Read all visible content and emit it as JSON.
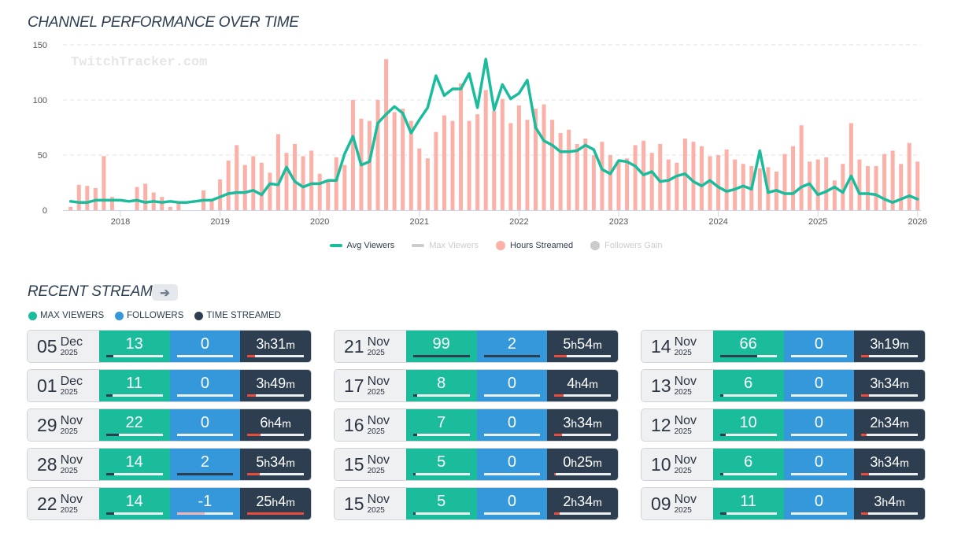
{
  "chart_title": "CHANNEL PERFORMANCE OVER TIME",
  "watermark": "TwitchTracker.com",
  "chart_data": {
    "type": "bar",
    "title": "CHANNEL PERFORMANCE OVER TIME",
    "xlabel": "",
    "ylabel": "",
    "ylim": [
      0,
      150
    ],
    "yticks": [
      "0",
      "50",
      "100",
      "150"
    ],
    "xticks": [
      "2018",
      "2019",
      "2020",
      "2021",
      "2022",
      "2023",
      "2024",
      "2025",
      "2026"
    ],
    "start_month": "2017-07",
    "grid": true,
    "legend_position": "bottom",
    "series": [
      {
        "name": "Avg Viewers",
        "type": "line",
        "color": "#1abc9c",
        "visible": true,
        "values": [
          8,
          7,
          7,
          9,
          9,
          9,
          9,
          8,
          9,
          7,
          8,
          7,
          8,
          7,
          7,
          8,
          9,
          9,
          12,
          15,
          16,
          16,
          18,
          14,
          24,
          23,
          39,
          26,
          21,
          24,
          24,
          27,
          27,
          51,
          67,
          41,
          44,
          79,
          87,
          94,
          88,
          70,
          82,
          93,
          122,
          104,
          110,
          110,
          124,
          93,
          137,
          91,
          114,
          101,
          106,
          118,
          75,
          63,
          59,
          53,
          53,
          54,
          59,
          55,
          37,
          33,
          45,
          44,
          40,
          32,
          35,
          26,
          27,
          31,
          33,
          26,
          22,
          27,
          21,
          17,
          19,
          22,
          19,
          54,
          16,
          18,
          15,
          15,
          21,
          24,
          14,
          17,
          21,
          16,
          31,
          15,
          15,
          14,
          10,
          7,
          10,
          13,
          10
        ]
      },
      {
        "name": "Max Viewers",
        "type": "line",
        "color": "#cccccc",
        "visible": false,
        "values": []
      },
      {
        "name": "Hours Streamed",
        "type": "bar",
        "color": "#fcb1a8",
        "visible": true,
        "values": [
          3,
          23,
          22,
          20,
          49,
          12,
          0,
          0,
          21,
          24,
          16,
          12,
          3,
          8,
          0,
          0,
          18,
          9,
          28,
          45,
          59,
          41,
          49,
          43,
          34,
          69,
          52,
          60,
          49,
          54,
          33,
          26,
          48,
          41,
          100,
          83,
          81,
          100,
          137,
          89,
          92,
          81,
          56,
          47,
          71,
          86,
          81,
          115,
          81,
          87,
          109,
          90,
          101,
          79,
          95,
          82,
          92,
          96,
          82,
          70,
          73,
          60,
          65,
          50,
          62,
          50,
          45,
          47,
          59,
          63,
          52,
          60,
          46,
          43,
          65,
          62,
          58,
          49,
          50,
          55,
          46,
          42,
          40,
          38,
          39,
          35,
          51,
          58,
          77,
          44,
          46,
          48,
          27,
          42,
          79,
          46,
          40,
          40,
          51,
          54,
          42,
          61,
          44
        ]
      },
      {
        "name": "Followers Gain",
        "type": "line",
        "color": "#cccccc",
        "visible": false,
        "values": []
      }
    ]
  },
  "legend": [
    {
      "label": "Avg Viewers",
      "kind": "line",
      "color": "#1abc9c",
      "active": true
    },
    {
      "label": "Max Viewers",
      "kind": "line",
      "color": "#cccccc",
      "active": false
    },
    {
      "label": "Hours Streamed",
      "kind": "dot",
      "color": "#fcb1a8",
      "active": true
    },
    {
      "label": "Followers Gain",
      "kind": "dot",
      "color": "#cccccc",
      "active": false
    }
  ],
  "streams_title": "RECENT STREAMS",
  "streams_arrow_icon": "arrow-right-icon",
  "streams_legend": [
    {
      "label": "MAX VIEWERS",
      "color": "#1abc9c"
    },
    {
      "label": "FOLLOWERS",
      "color": "#3498db"
    },
    {
      "label": "TIME STREAMED",
      "color": "#2c3e50"
    }
  ],
  "streams": [
    {
      "day": "05",
      "month": "Dec",
      "year": "2025",
      "viewers": "13",
      "viewers_pct": 13,
      "followers": "0",
      "followers_pct": 0,
      "time_h": "3",
      "time_m": "31",
      "time_pct": 14
    },
    {
      "day": "21",
      "month": "Nov",
      "year": "2025",
      "viewers": "99",
      "viewers_pct": 100,
      "followers": "2",
      "followers_pct": 100,
      "time_h": "5",
      "time_m": "54",
      "time_pct": 22
    },
    {
      "day": "14",
      "month": "Nov",
      "year": "2025",
      "viewers": "66",
      "viewers_pct": 66,
      "followers": "0",
      "followers_pct": 0,
      "time_h": "3",
      "time_m": "19",
      "time_pct": 13
    },
    {
      "day": "01",
      "month": "Dec",
      "year": "2025",
      "viewers": "11",
      "viewers_pct": 11,
      "followers": "0",
      "followers_pct": 0,
      "time_h": "3",
      "time_m": "49",
      "time_pct": 15
    },
    {
      "day": "17",
      "month": "Nov",
      "year": "2025",
      "viewers": "8",
      "viewers_pct": 7,
      "followers": "0",
      "followers_pct": 0,
      "time_h": "4",
      "time_m": "4",
      "time_pct": 16
    },
    {
      "day": "13",
      "month": "Nov",
      "year": "2025",
      "viewers": "6",
      "viewers_pct": 6,
      "followers": "0",
      "followers_pct": 0,
      "time_h": "3",
      "time_m": "34",
      "time_pct": 14
    },
    {
      "day": "29",
      "month": "Nov",
      "year": "2025",
      "viewers": "22",
      "viewers_pct": 22,
      "followers": "0",
      "followers_pct": 0,
      "time_h": "6",
      "time_m": "4",
      "time_pct": 24
    },
    {
      "day": "16",
      "month": "Nov",
      "year": "2025",
      "viewers": "7",
      "viewers_pct": 7,
      "followers": "0",
      "followers_pct": 0,
      "time_h": "3",
      "time_m": "34",
      "time_pct": 14
    },
    {
      "day": "12",
      "month": "Nov",
      "year": "2025",
      "viewers": "10",
      "viewers_pct": 10,
      "followers": "0",
      "followers_pct": 0,
      "time_h": "2",
      "time_m": "34",
      "time_pct": 10
    },
    {
      "day": "28",
      "month": "Nov",
      "year": "2025",
      "viewers": "14",
      "viewers_pct": 14,
      "followers": "2",
      "followers_pct": 100,
      "time_h": "5",
      "time_m": "34",
      "time_pct": 22
    },
    {
      "day": "15",
      "month": "Nov",
      "year": "2025",
      "viewers": "5",
      "viewers_pct": 5,
      "followers": "0",
      "followers_pct": 0,
      "time_h": "0",
      "time_m": "25",
      "time_pct": 2
    },
    {
      "day": "10",
      "month": "Nov",
      "year": "2025",
      "viewers": "6",
      "viewers_pct": 6,
      "followers": "0",
      "followers_pct": 0,
      "time_h": "3",
      "time_m": "34",
      "time_pct": 14
    },
    {
      "day": "22",
      "month": "Nov",
      "year": "2025",
      "viewers": "14",
      "viewers_pct": 14,
      "followers": "-1",
      "followers_pct": -50,
      "time_h": "25",
      "time_m": "4",
      "time_pct": 100
    },
    {
      "day": "15",
      "month": "Nov",
      "year": "2025",
      "viewers": "5",
      "viewers_pct": 5,
      "followers": "0",
      "followers_pct": 0,
      "time_h": "2",
      "time_m": "34",
      "time_pct": 10
    },
    {
      "day": "09",
      "month": "Nov",
      "year": "2025",
      "viewers": "11",
      "viewers_pct": 11,
      "followers": "0",
      "followers_pct": 0,
      "time_h": "3",
      "time_m": "4",
      "time_pct": 12
    }
  ],
  "time_units": {
    "h": "h",
    "m": "m"
  }
}
